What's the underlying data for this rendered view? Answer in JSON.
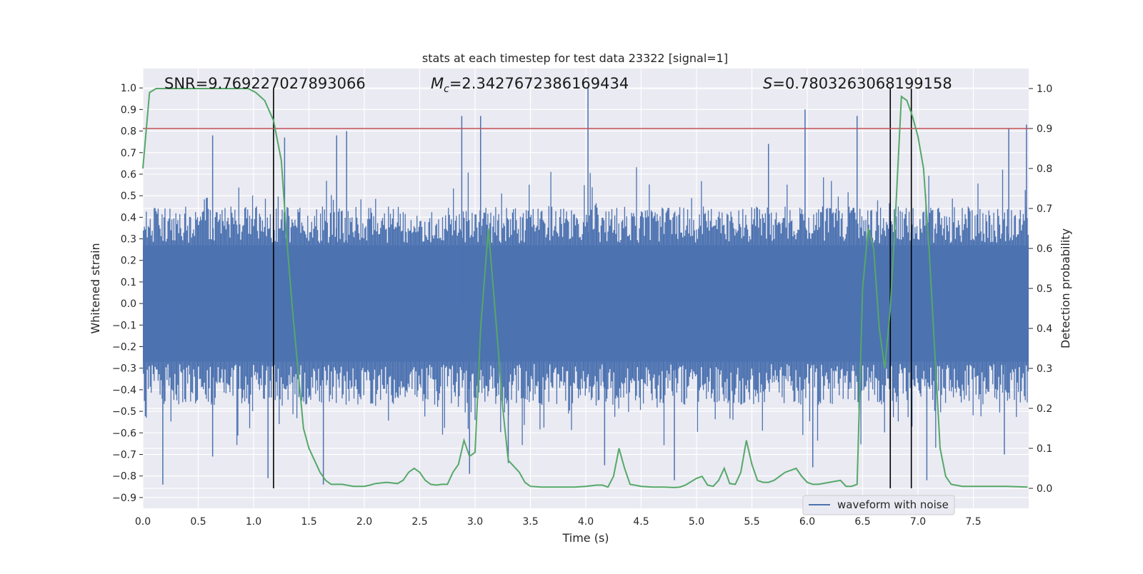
{
  "chart_data": {
    "type": "line",
    "title": "stats at each timestep for test data 23322 [signal=1]",
    "xlabel": "Time (s)",
    "ylabel": "Whitened strain",
    "y2label": "Detection probability",
    "xlim": [
      0.0,
      8.0
    ],
    "ylim": [
      -0.95,
      1.09
    ],
    "y2lim": [
      -0.05,
      1.05
    ],
    "xticks": [
      "0.0",
      "0.5",
      "1.0",
      "1.5",
      "2.0",
      "2.5",
      "3.0",
      "3.5",
      "4.0",
      "4.5",
      "5.0",
      "5.5",
      "6.0",
      "6.5",
      "7.0",
      "7.5"
    ],
    "yticks": [
      "1.0",
      "0.9",
      "0.8",
      "0.7",
      "0.6",
      "0.5",
      "0.4",
      "0.3",
      "0.2",
      "0.1",
      "0.0",
      "-0.1",
      "-0.2",
      "-0.3",
      "-0.4",
      "-0.5",
      "-0.6",
      "-0.7",
      "-0.8",
      "-0.9"
    ],
    "y2ticks": [
      "1.0",
      "0.9",
      "0.8",
      "0.7",
      "0.6",
      "0.5",
      "0.4",
      "0.3",
      "0.2",
      "0.1",
      "0.0"
    ],
    "annotations": {
      "snr": "SNR=9.769227027893066",
      "mc_symbol": "M",
      "mc_subscript": "c",
      "mc_value": "=2.3427672386169434",
      "s_symbol": "S",
      "s_value": "=0.7803263068199158"
    },
    "threshold": {
      "value": 0.9,
      "axis": "y2",
      "color": "#c44e52"
    },
    "vertical_markers": [
      1.18,
      6.75,
      6.94
    ],
    "legend": {
      "label": "waveform with noise",
      "location": "lower-right"
    },
    "waveform": {
      "name": "waveform with noise",
      "color": "#4c72b0",
      "core_amplitude": 0.27,
      "envelope_amplitude": 0.45,
      "spikes": [
        {
          "t": 0.18,
          "v": -0.84
        },
        {
          "t": 0.63,
          "v": 0.78
        },
        {
          "t": 0.63,
          "v": -0.71
        },
        {
          "t": 1.13,
          "v": -0.81
        },
        {
          "t": 1.28,
          "v": 0.77
        },
        {
          "t": 1.63,
          "v": -0.84
        },
        {
          "t": 1.75,
          "v": 0.78
        },
        {
          "t": 1.84,
          "v": 0.8
        },
        {
          "t": 2.88,
          "v": 0.87
        },
        {
          "t": 2.95,
          "v": -0.79
        },
        {
          "t": 3.05,
          "v": 0.87
        },
        {
          "t": 3.3,
          "v": -0.74
        },
        {
          "t": 4.02,
          "v": 1.0
        },
        {
          "t": 4.17,
          "v": -0.75
        },
        {
          "t": 4.8,
          "v": -0.82
        },
        {
          "t": 5.65,
          "v": 0.74
        },
        {
          "t": 5.98,
          "v": 0.9
        },
        {
          "t": 6.05,
          "v": -0.76
        },
        {
          "t": 6.45,
          "v": 0.87
        },
        {
          "t": 7.08,
          "v": -0.82
        },
        {
          "t": 7.78,
          "v": -0.7
        },
        {
          "t": 7.82,
          "v": 0.81
        },
        {
          "t": 7.98,
          "v": 0.83
        }
      ]
    },
    "probability": {
      "name": "Detection probability",
      "color": "#55a868",
      "axis": "y2",
      "x": [
        0.0,
        0.06,
        0.12,
        0.2,
        0.4,
        0.6,
        0.8,
        0.95,
        1.02,
        1.1,
        1.18,
        1.25,
        1.3,
        1.35,
        1.4,
        1.45,
        1.5,
        1.55,
        1.6,
        1.65,
        1.7,
        1.75,
        1.8,
        1.9,
        2.0,
        2.05,
        2.1,
        2.2,
        2.3,
        2.35,
        2.4,
        2.45,
        2.5,
        2.55,
        2.6,
        2.65,
        2.7,
        2.75,
        2.8,
        2.85,
        2.9,
        2.95,
        3.0,
        3.05,
        3.12,
        3.2,
        3.25,
        3.3,
        3.4,
        3.45,
        3.5,
        3.6,
        3.7,
        3.8,
        3.9,
        4.0,
        4.1,
        4.15,
        4.2,
        4.25,
        4.3,
        4.35,
        4.4,
        4.5,
        4.6,
        4.7,
        4.8,
        4.85,
        4.9,
        5.0,
        5.05,
        5.1,
        5.15,
        5.2,
        5.25,
        5.3,
        5.35,
        5.4,
        5.45,
        5.5,
        5.55,
        5.6,
        5.65,
        5.7,
        5.75,
        5.8,
        5.9,
        5.95,
        6.0,
        6.05,
        6.1,
        6.2,
        6.3,
        6.35,
        6.4,
        6.45,
        6.5,
        6.55,
        6.6,
        6.65,
        6.7,
        6.75,
        6.8,
        6.85,
        6.9,
        6.95,
        7.0,
        7.05,
        7.1,
        7.15,
        7.2,
        7.25,
        7.3,
        7.4,
        7.6,
        7.8,
        7.99
      ],
      "y": [
        0.8,
        0.99,
        1.0,
        1.0,
        1.0,
        1.0,
        1.0,
        1.0,
        0.99,
        0.97,
        0.92,
        0.82,
        0.62,
        0.45,
        0.3,
        0.15,
        0.1,
        0.07,
        0.04,
        0.02,
        0.01,
        0.01,
        0.01,
        0.005,
        0.005,
        0.008,
        0.012,
        0.015,
        0.012,
        0.02,
        0.04,
        0.05,
        0.04,
        0.02,
        0.01,
        0.008,
        0.01,
        0.01,
        0.04,
        0.06,
        0.12,
        0.08,
        0.09,
        0.4,
        0.65,
        0.38,
        0.2,
        0.07,
        0.04,
        0.015,
        0.005,
        0.003,
        0.003,
        0.003,
        0.003,
        0.005,
        0.008,
        0.008,
        0.003,
        0.03,
        0.1,
        0.05,
        0.01,
        0.005,
        0.003,
        0.003,
        0.002,
        0.003,
        0.008,
        0.025,
        0.03,
        0.008,
        0.005,
        0.02,
        0.05,
        0.012,
        0.01,
        0.04,
        0.12,
        0.06,
        0.02,
        0.015,
        0.015,
        0.02,
        0.03,
        0.04,
        0.05,
        0.03,
        0.015,
        0.01,
        0.01,
        0.015,
        0.02,
        0.005,
        0.005,
        0.01,
        0.5,
        0.65,
        0.6,
        0.4,
        0.3,
        0.45,
        0.7,
        0.98,
        0.97,
        0.93,
        0.88,
        0.8,
        0.6,
        0.35,
        0.1,
        0.03,
        0.01,
        0.005,
        0.005,
        0.005,
        0.003
      ]
    }
  }
}
